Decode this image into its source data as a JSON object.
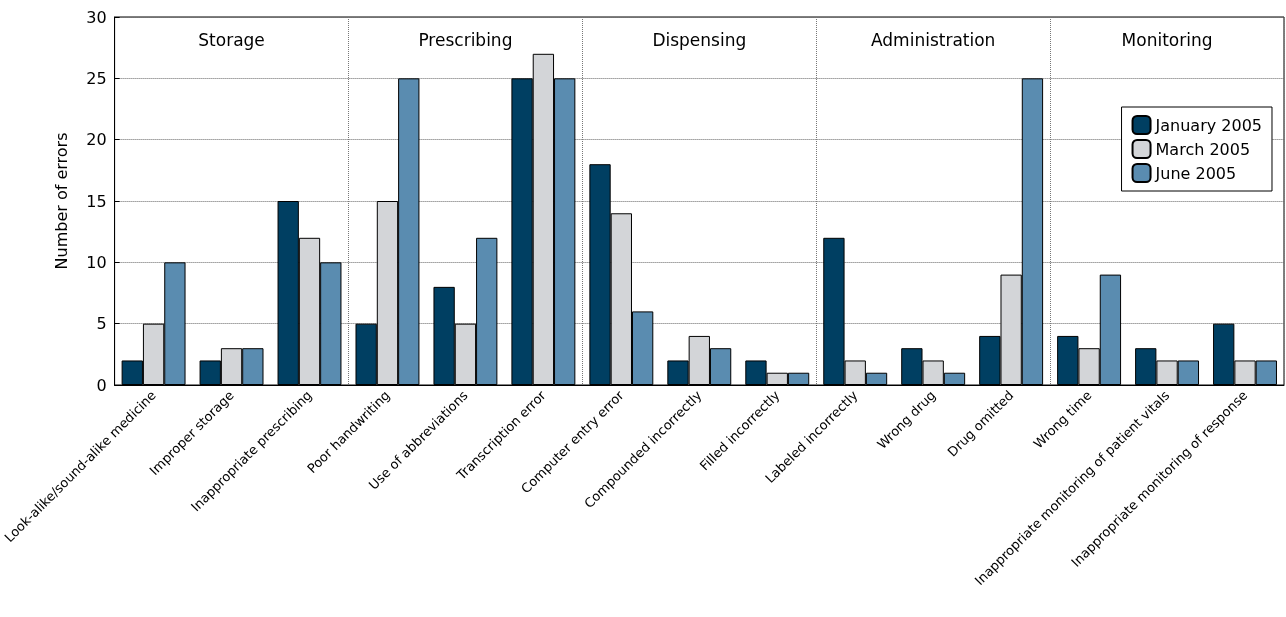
{
  "chart_data": {
    "type": "bar",
    "ylabel": "Number of errors",
    "categories": [
      "Look-alike/sound-alike medicine",
      "Improper storage",
      "Inappropriate prescribing",
      "Poor handwriting",
      "Use of abbreviations",
      "Transcription error",
      "Computer entry error",
      "Compounded incorrectly",
      "Filled incorrectly",
      "Labeled incorrectly",
      "Wrong drug",
      "Drug omitted",
      "Wrong time",
      "Inappropriate monitoring of patient vitals",
      "Inappropriate monitoring of response"
    ],
    "series": [
      {
        "name": "January 2005",
        "color": "#003f62",
        "values": [
          2,
          2,
          15,
          5,
          8,
          25,
          18,
          2,
          2,
          12,
          3,
          4,
          4,
          3,
          5
        ]
      },
      {
        "name": "March 2005",
        "color": "#d3d5d8",
        "values": [
          5,
          3,
          12,
          15,
          5,
          27,
          14,
          4,
          1,
          2,
          2,
          9,
          3,
          2,
          2
        ]
      },
      {
        "name": "June 2005",
        "color": "#5a8cb0",
        "values": [
          10,
          3,
          10,
          25,
          12,
          25,
          6,
          3,
          1,
          1,
          1,
          25,
          9,
          2,
          2
        ]
      }
    ],
    "ylim": [
      0,
      30
    ],
    "yticks": [
      0,
      5,
      10,
      15,
      20,
      25,
      30
    ],
    "grid": true,
    "legend": "top right",
    "annotations": [
      "Storage",
      "Prescribing",
      "Dispensing",
      "Administration",
      "Monitoring"
    ]
  }
}
